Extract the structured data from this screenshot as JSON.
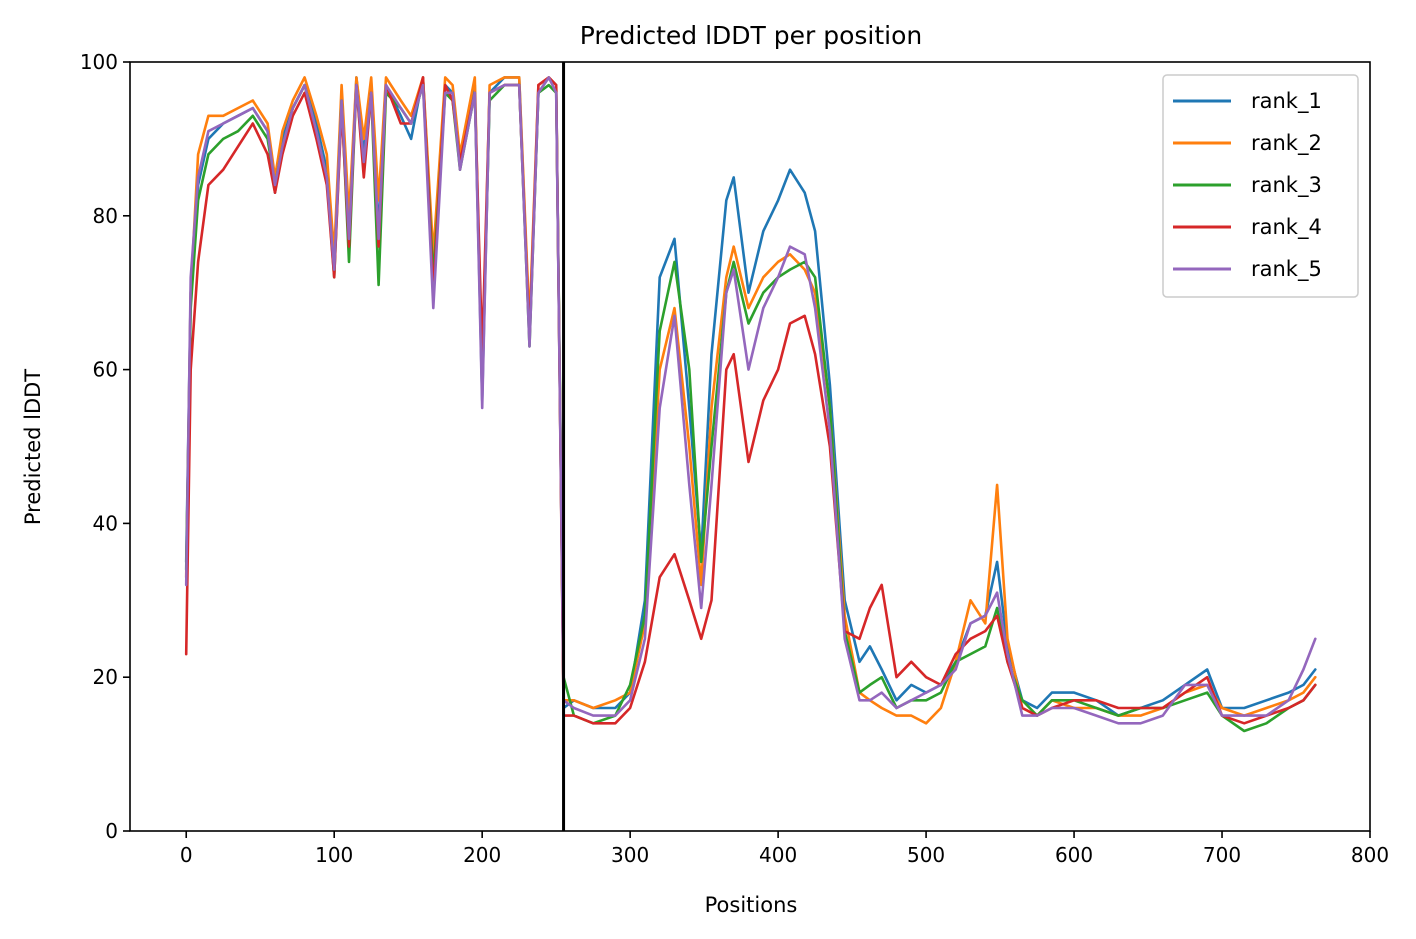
{
  "chart_data": {
    "type": "line",
    "title": "Predicted lDDT per position",
    "xlabel": "Positions",
    "ylabel": "Predicted lDDT",
    "xlim": [
      -38,
      800
    ],
    "ylim": [
      0,
      100
    ],
    "xticks": [
      0,
      100,
      200,
      300,
      400,
      500,
      600,
      700,
      800
    ],
    "yticks": [
      0,
      20,
      40,
      60,
      80,
      100
    ],
    "grid": false,
    "legend_position": "top-right",
    "vline_x": 255,
    "series": [
      {
        "name": "rank_1",
        "color": "#1f77b4",
        "x": [
          0,
          3,
          8,
          15,
          25,
          35,
          45,
          55,
          60,
          65,
          72,
          80,
          88,
          95,
          100,
          105,
          110,
          115,
          120,
          125,
          130,
          135,
          145,
          152,
          160,
          167,
          175,
          180,
          185,
          195,
          200,
          205,
          215,
          225,
          232,
          238,
          245,
          250,
          255,
          262,
          275,
          290,
          300,
          310,
          320,
          330,
          340,
          348,
          355,
          365,
          370,
          380,
          390,
          400,
          408,
          418,
          425,
          435,
          445,
          455,
          462,
          470,
          480,
          490,
          500,
          510,
          520,
          530,
          540,
          548,
          555,
          565,
          575,
          585,
          600,
          615,
          630,
          645,
          660,
          675,
          690,
          700,
          715,
          730,
          745,
          755,
          763
        ],
        "values": [
          35,
          70,
          84,
          90,
          92,
          93,
          94,
          91,
          83,
          90,
          94,
          97,
          92,
          86,
          73,
          96,
          76,
          98,
          88,
          97,
          78,
          97,
          93,
          90,
          98,
          73,
          97,
          96,
          87,
          97,
          56,
          96,
          98,
          98,
          64,
          96,
          98,
          97,
          16,
          17,
          16,
          16,
          18,
          30,
          72,
          77,
          55,
          36,
          62,
          82,
          85,
          70,
          78,
          82,
          86,
          83,
          78,
          58,
          30,
          22,
          24,
          21,
          17,
          19,
          18,
          19,
          22,
          27,
          28,
          35,
          24,
          17,
          16,
          18,
          18,
          17,
          15,
          16,
          17,
          19,
          21,
          16,
          16,
          17,
          18,
          19,
          21
        ]
      },
      {
        "name": "rank_2",
        "color": "#ff7f0e",
        "x": [
          0,
          3,
          8,
          15,
          25,
          35,
          45,
          55,
          60,
          65,
          72,
          80,
          88,
          95,
          100,
          105,
          110,
          115,
          120,
          125,
          130,
          135,
          145,
          152,
          160,
          167,
          175,
          180,
          185,
          195,
          200,
          205,
          215,
          225,
          232,
          238,
          245,
          250,
          255,
          262,
          275,
          290,
          300,
          310,
          320,
          330,
          340,
          348,
          355,
          365,
          370,
          380,
          390,
          400,
          408,
          418,
          425,
          435,
          445,
          455,
          462,
          470,
          480,
          490,
          500,
          510,
          520,
          530,
          540,
          548,
          555,
          565,
          575,
          585,
          600,
          615,
          630,
          645,
          660,
          675,
          690,
          700,
          715,
          730,
          745,
          755,
          763
        ],
        "values": [
          33,
          70,
          88,
          93,
          93,
          94,
          95,
          92,
          85,
          91,
          95,
          98,
          93,
          88,
          75,
          97,
          80,
          98,
          90,
          98,
          82,
          98,
          95,
          93,
          98,
          75,
          98,
          97,
          88,
          98,
          57,
          97,
          98,
          98,
          66,
          97,
          98,
          97,
          17,
          17,
          16,
          17,
          18,
          27,
          60,
          68,
          50,
          32,
          55,
          72,
          76,
          68,
          72,
          74,
          75,
          73,
          70,
          55,
          28,
          18,
          17,
          16,
          15,
          15,
          14,
          16,
          22,
          30,
          27,
          45,
          25,
          16,
          15,
          17,
          16,
          16,
          15,
          15,
          16,
          18,
          19,
          16,
          15,
          16,
          17,
          18,
          20
        ]
      },
      {
        "name": "rank_3",
        "color": "#2ca02c",
        "x": [
          0,
          3,
          8,
          15,
          25,
          35,
          45,
          55,
          60,
          65,
          72,
          80,
          88,
          95,
          100,
          105,
          110,
          115,
          120,
          125,
          130,
          135,
          145,
          152,
          160,
          167,
          175,
          180,
          185,
          195,
          200,
          205,
          215,
          225,
          232,
          238,
          245,
          250,
          255,
          262,
          275,
          290,
          300,
          310,
          320,
          330,
          340,
          348,
          355,
          365,
          370,
          380,
          390,
          400,
          408,
          418,
          425,
          435,
          445,
          455,
          462,
          470,
          480,
          490,
          500,
          510,
          520,
          530,
          540,
          548,
          555,
          565,
          575,
          585,
          600,
          615,
          630,
          645,
          660,
          675,
          690,
          700,
          715,
          730,
          745,
          755,
          763
        ],
        "values": [
          34,
          68,
          82,
          88,
          90,
          91,
          93,
          90,
          84,
          89,
          94,
          97,
          91,
          85,
          72,
          95,
          74,
          97,
          86,
          96,
          71,
          96,
          94,
          92,
          97,
          72,
          96,
          95,
          86,
          96,
          58,
          95,
          97,
          97,
          63,
          96,
          97,
          96,
          20,
          15,
          14,
          15,
          19,
          28,
          65,
          74,
          60,
          35,
          50,
          70,
          74,
          66,
          70,
          72,
          73,
          74,
          72,
          55,
          26,
          18,
          19,
          20,
          16,
          17,
          17,
          18,
          22,
          23,
          24,
          29,
          22,
          17,
          15,
          17,
          17,
          16,
          15,
          16,
          16,
          17,
          18,
          15,
          13,
          14,
          16,
          17,
          19
        ]
      },
      {
        "name": "rank_4",
        "color": "#d62728",
        "x": [
          0,
          3,
          8,
          15,
          25,
          35,
          45,
          55,
          60,
          65,
          72,
          80,
          88,
          95,
          100,
          105,
          110,
          115,
          120,
          125,
          130,
          135,
          145,
          152,
          160,
          167,
          175,
          180,
          185,
          195,
          200,
          205,
          215,
          225,
          232,
          238,
          245,
          250,
          255,
          262,
          275,
          290,
          300,
          310,
          320,
          330,
          340,
          348,
          355,
          365,
          370,
          380,
          390,
          400,
          408,
          418,
          425,
          435,
          445,
          455,
          462,
          470,
          480,
          490,
          500,
          510,
          520,
          530,
          540,
          548,
          555,
          565,
          575,
          585,
          600,
          615,
          630,
          645,
          660,
          675,
          690,
          700,
          715,
          730,
          745,
          755,
          763
        ],
        "values": [
          23,
          60,
          74,
          84,
          86,
          89,
          92,
          88,
          83,
          88,
          93,
          96,
          90,
          84,
          72,
          94,
          76,
          97,
          85,
          96,
          76,
          97,
          92,
          92,
          98,
          70,
          97,
          95,
          87,
          96,
          62,
          96,
          97,
          97,
          64,
          97,
          98,
          97,
          15,
          15,
          14,
          14,
          16,
          22,
          33,
          36,
          30,
          25,
          30,
          60,
          62,
          48,
          56,
          60,
          66,
          67,
          62,
          50,
          26,
          25,
          29,
          32,
          20,
          22,
          20,
          19,
          23,
          25,
          26,
          28,
          22,
          16,
          15,
          16,
          17,
          17,
          16,
          16,
          16,
          18,
          20,
          15,
          14,
          15,
          16,
          17,
          19
        ]
      },
      {
        "name": "rank_5",
        "color": "#9467bd",
        "x": [
          0,
          3,
          8,
          15,
          25,
          35,
          45,
          55,
          60,
          65,
          72,
          80,
          88,
          95,
          100,
          105,
          110,
          115,
          120,
          125,
          130,
          135,
          145,
          152,
          160,
          167,
          175,
          180,
          185,
          195,
          200,
          205,
          215,
          225,
          232,
          238,
          245,
          250,
          255,
          262,
          275,
          290,
          300,
          310,
          320,
          330,
          340,
          348,
          355,
          365,
          370,
          380,
          390,
          400,
          408,
          418,
          425,
          435,
          445,
          455,
          462,
          470,
          480,
          490,
          500,
          510,
          520,
          530,
          540,
          548,
          555,
          565,
          575,
          585,
          600,
          615,
          630,
          645,
          660,
          675,
          690,
          700,
          715,
          730,
          745,
          755,
          763
        ],
        "values": [
          32,
          72,
          85,
          91,
          92,
          93,
          94,
          91,
          84,
          89,
          94,
          97,
          91,
          85,
          73,
          95,
          77,
          97,
          87,
          96,
          77,
          97,
          94,
          92,
          97,
          68,
          96,
          96,
          86,
          96,
          55,
          96,
          97,
          97,
          63,
          96,
          98,
          96,
          17,
          16,
          15,
          15,
          17,
          25,
          55,
          67,
          45,
          29,
          45,
          70,
          73,
          60,
          68,
          72,
          76,
          75,
          68,
          52,
          25,
          17,
          17,
          18,
          16,
          17,
          18,
          19,
          21,
          27,
          28,
          31,
          23,
          15,
          15,
          16,
          16,
          15,
          14,
          14,
          15,
          19,
          19,
          15,
          15,
          15,
          17,
          21,
          25
        ]
      }
    ]
  }
}
